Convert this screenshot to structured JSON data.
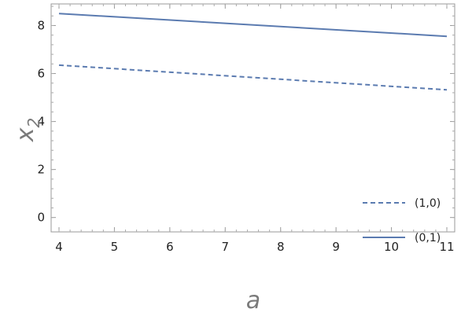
{
  "chart_data": {
    "type": "line",
    "xlabel": "a",
    "ylabel": "x",
    "ylabel_subscript": "2",
    "xlim": [
      4,
      11
    ],
    "ylim": [
      -0.6,
      8.9
    ],
    "x_ticks": [
      4,
      5,
      6,
      7,
      8,
      9,
      10,
      11
    ],
    "y_ticks": [
      0,
      2,
      4,
      6,
      8
    ],
    "grid": false,
    "legend_position": "bottom-right",
    "series": [
      {
        "name": "(1,0)",
        "x": [
          4,
          11
        ],
        "y": [
          6.35,
          5.32
        ],
        "style": "dashed",
        "color": "#5b7bb0"
      },
      {
        "name": "(0,1)",
        "x": [
          4,
          11
        ],
        "y": [
          8.5,
          7.55
        ],
        "style": "solid",
        "color": "#5b7bb0"
      }
    ]
  }
}
